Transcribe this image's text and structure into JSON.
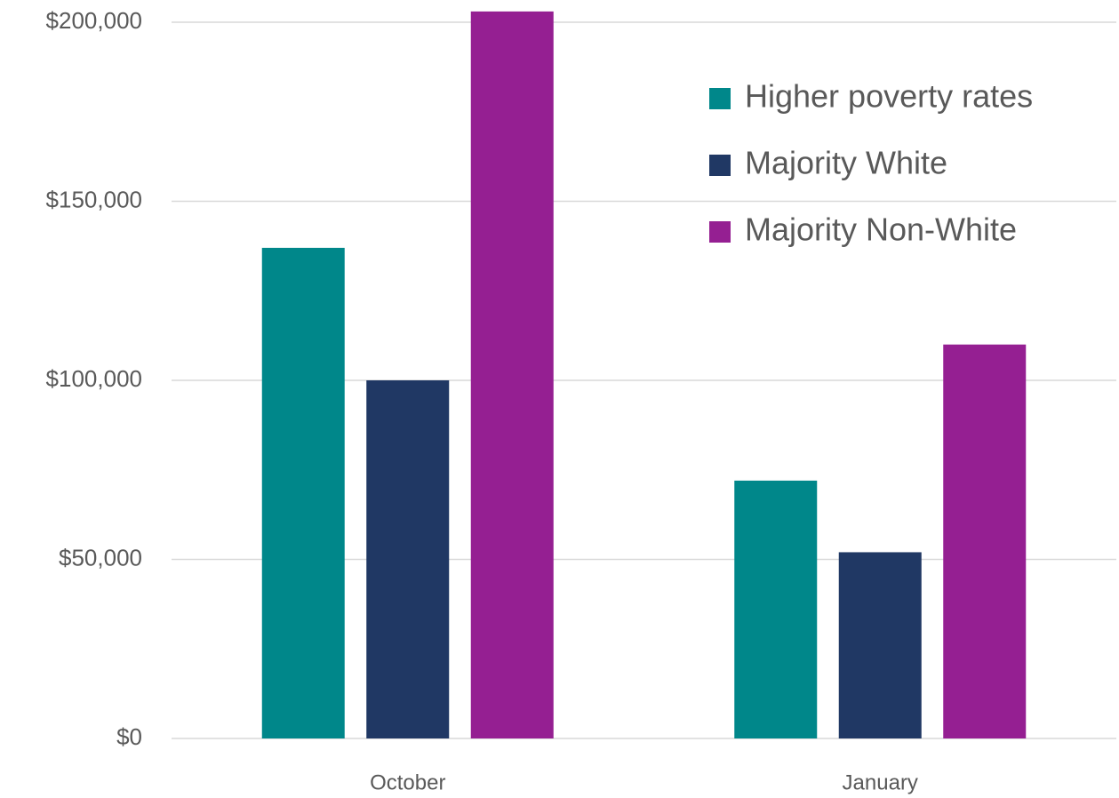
{
  "chart_data": {
    "type": "bar",
    "categories": [
      "October",
      "January"
    ],
    "series": [
      {
        "name": "Higher poverty rates",
        "color": "#00878a",
        "values": [
          137000,
          72000
        ]
      },
      {
        "name": "Majority White",
        "color": "#203864",
        "values": [
          100000,
          52000
        ]
      },
      {
        "name": "Majority Non-White",
        "color": "#951f92",
        "values": [
          203000,
          110000
        ]
      }
    ],
    "ylim": [
      0,
      200000
    ],
    "yticks": [
      {
        "value": 0,
        "label": "$0"
      },
      {
        "value": 50000,
        "label": "$50,000"
      },
      {
        "value": 100000,
        "label": "$100,000"
      },
      {
        "value": 150000,
        "label": "$150,000"
      },
      {
        "value": 200000,
        "label": "$200,000"
      }
    ],
    "grid": true,
    "legend": "top right"
  }
}
